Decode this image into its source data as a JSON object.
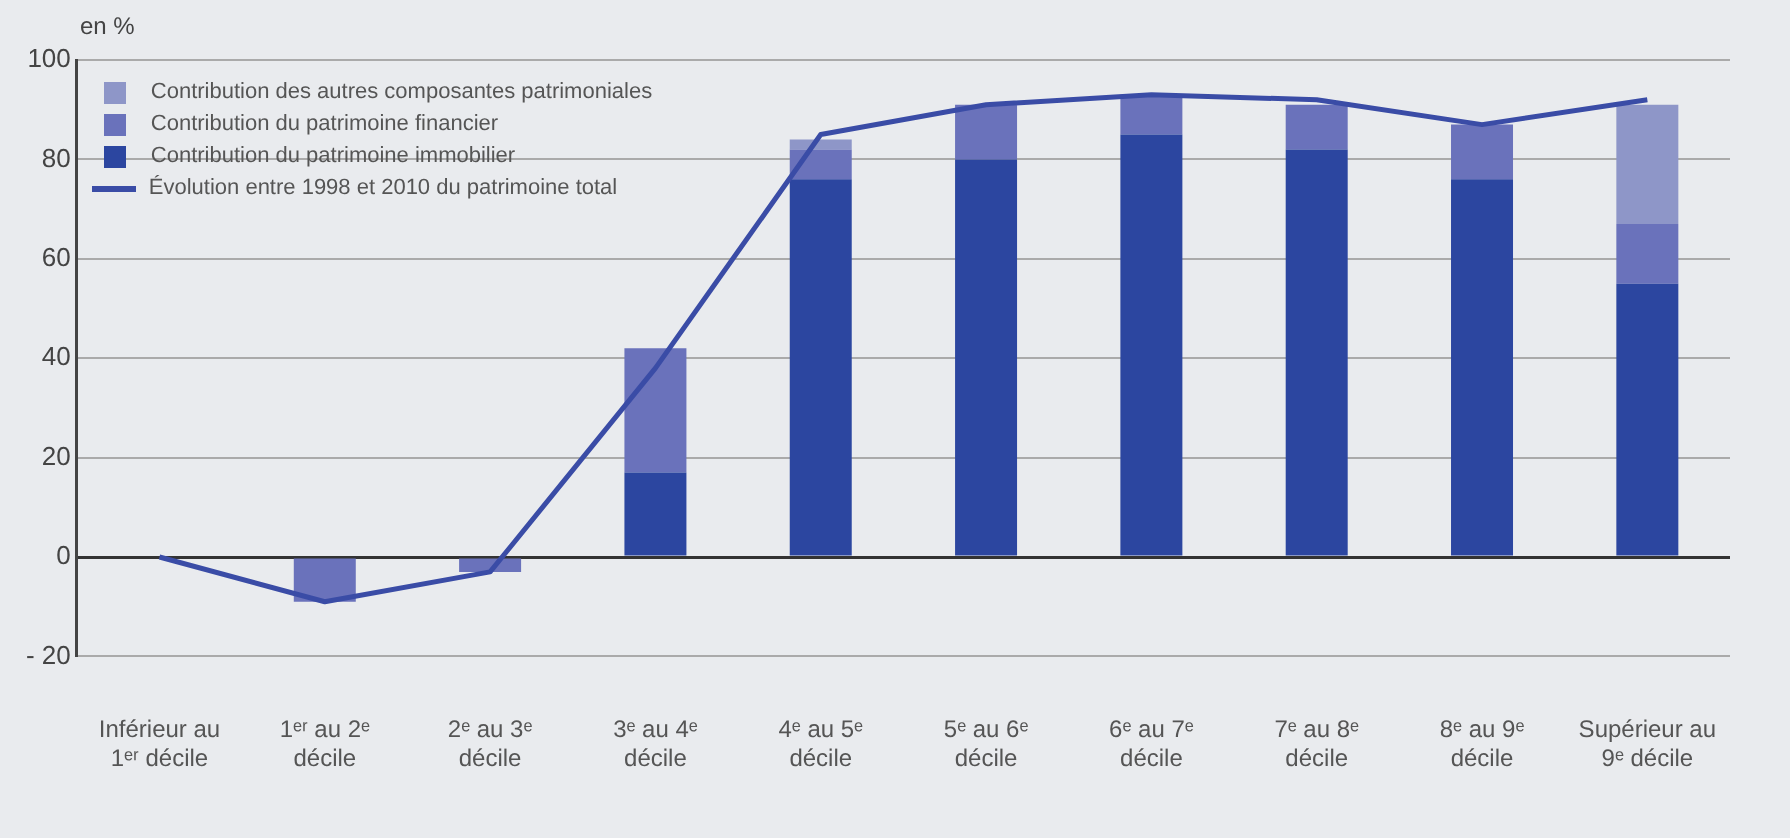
{
  "chart_data": {
    "type": "bar",
    "ylabel": "en %",
    "categories": [
      "Inférieur au 1ᵉʳ décile",
      "1ᵉʳ au 2ᵉ décile",
      "2ᵉ au 3ᵉ décile",
      "3ᵉ au 4ᵉ décile",
      "4ᵉ au 5ᵉ décile",
      "5ᵉ au 6ᵉ décile",
      "6ᵉ au 7ᵉ décile",
      "7ᵉ au 8ᵉ décile",
      "8ᵉ au 9ᵉ décile",
      "Supérieur au 9ᵉ décile"
    ],
    "stacked": true,
    "series": [
      {
        "name": "Contribution du  patrimoine immobilier",
        "color": "#2c46a0",
        "values": [
          0,
          0,
          0,
          17,
          76,
          80,
          85,
          82,
          76,
          55
        ]
      },
      {
        "name": "Contribution du patrimoine financier",
        "color": "#6a72bb",
        "values": [
          0,
          -9,
          -3,
          25,
          6,
          11,
          8,
          9,
          11,
          12
        ]
      },
      {
        "name": "Contribution des autres composantes patrimoniales",
        "color": "#8e96c8",
        "values": [
          0,
          0,
          0,
          0,
          2,
          0,
          0,
          0,
          0,
          24
        ]
      },
      {
        "name": "Évolution entre 1998 et 2010 du patrimoine total",
        "type": "line",
        "color": "#3a4ca6",
        "values": [
          0,
          -9,
          -3,
          38,
          85,
          91,
          93,
          92,
          87,
          92
        ]
      }
    ],
    "ylim": [
      -20,
      100
    ],
    "yticks": [
      {
        "value": -20,
        "label": "- 20"
      },
      0,
      20,
      40,
      60,
      80,
      100
    ],
    "grid": "y",
    "legend": "top left"
  }
}
